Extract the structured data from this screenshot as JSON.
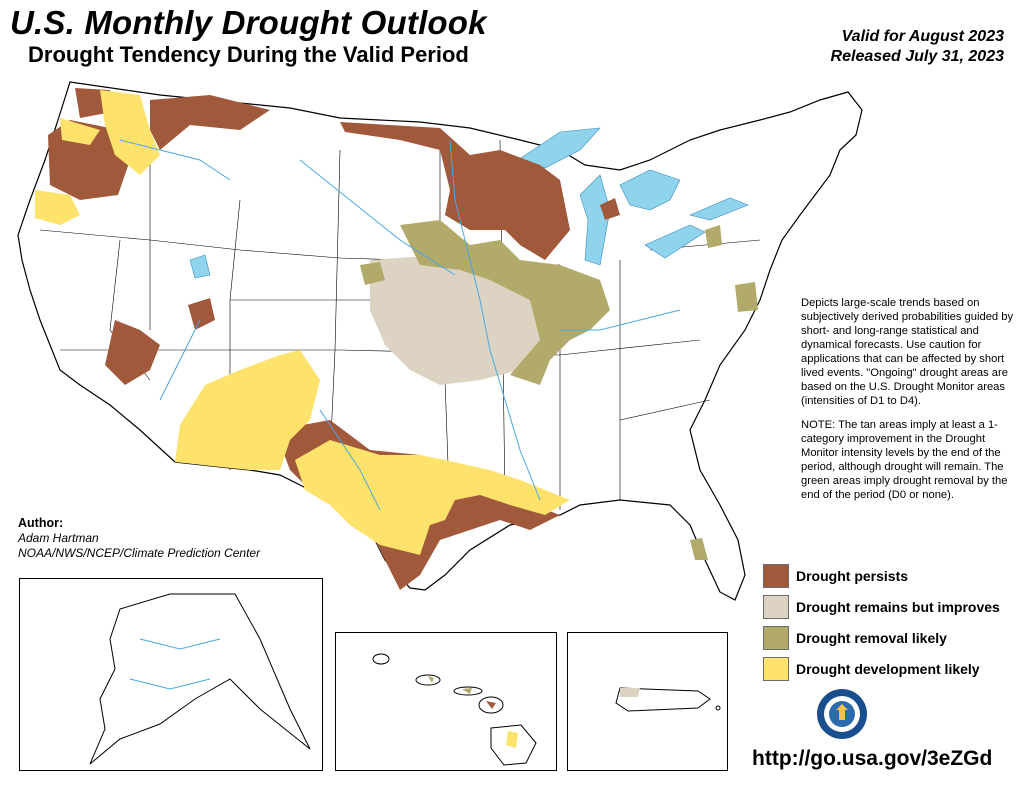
{
  "header": {
    "title": "U.S. Monthly Drought Outlook",
    "subtitle": "Drought Tendency During the Valid Period",
    "valid_line": "Valid for August 2023",
    "released_line": "Released July 31, 2023"
  },
  "description": {
    "paragraph1": "Depicts large-scale trends based on subjectively derived probabilities guided by short- and long-range statistical and dynamical forecasts. Use caution for applications that can be affected by short lived events. \"Ongoing\" drought areas are based on the U.S. Drought Monitor areas (intensities of D1 to D4).",
    "paragraph2": "NOTE: The tan areas imply at least a 1-category improvement in the Drought Monitor intensity levels by the end of the period, although drought will remain. The green areas imply drought removal by the end of the period (D0 or none)."
  },
  "author": {
    "label": "Author:",
    "name": "Adam Hartman",
    "org": "NOAA/NWS/NCEP/Climate Prediction Center"
  },
  "legend": [
    {
      "label": "Drought persists",
      "color": "#a0593b"
    },
    {
      "label": "Drought remains but improves",
      "color": "#ddd3c2"
    },
    {
      "label": "Drought removal likely",
      "color": "#b1aa6a"
    },
    {
      "label": "Drought development likely",
      "color": "#fde26b"
    }
  ],
  "colors": {
    "water": "#8fd3ec",
    "rivers": "#4aa8e0",
    "borders": "#000000"
  },
  "icons": {
    "seal": "noaa-seal-icon"
  },
  "url": "http://go.usa.gov/3eZGd"
}
